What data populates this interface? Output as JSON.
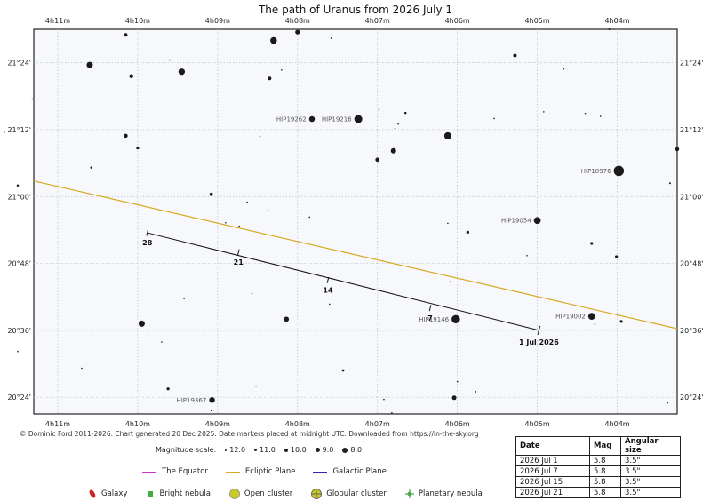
{
  "title": "The path of Uranus from 2026 July 1",
  "chart_data": {
    "type": "star-chart",
    "ra_ticks": [
      "4h11m",
      "4h10m",
      "4h09m",
      "4h08m",
      "4h07m",
      "4h06m",
      "4h05m",
      "4h04m"
    ],
    "dec_ticks": [
      "21°24'",
      "21°12'",
      "21°00'",
      "20°48'",
      "20°36'",
      "20°24'"
    ],
    "ra_range_minutes": [
      3.25,
      11.3
    ],
    "dec_range_arcmin": [
      1221,
      1290
    ],
    "grid": true,
    "ecliptic_line": {
      "color": "#d8a823",
      "dec_at_ra_min": [
        [
          11.3,
          1262.8
        ],
        [
          3.25,
          1236.3
        ]
      ]
    },
    "path": {
      "color": "#111111",
      "start_label": "1 Jul 2026",
      "points": [
        {
          "label": "",
          "ra_min": 4.98,
          "dec": 1236.0
        },
        {
          "label": "7",
          "ra_min": 6.34,
          "dec": 1240.0
        },
        {
          "label": "14",
          "ra_min": 7.62,
          "dec": 1245.0
        },
        {
          "label": "21",
          "ra_min": 8.74,
          "dec": 1250.0
        },
        {
          "label": "28",
          "ra_min": 9.88,
          "dec": 1253.5
        }
      ]
    },
    "named_stars": [
      {
        "name": "HIP19262",
        "ra_min": 7.82,
        "dec": 1273.9,
        "mag": 10.0
      },
      {
        "name": "HIP19216",
        "ra_min": 7.24,
        "dec": 1273.9,
        "mag": 9.0
      },
      {
        "name": "HIP18976",
        "ra_min": 3.98,
        "dec": 1264.6,
        "mag": 8.0
      },
      {
        "name": "HIP19054",
        "ra_min": 5.0,
        "dec": 1255.7,
        "mag": 9.5
      },
      {
        "name": "HIP19002",
        "ra_min": 4.32,
        "dec": 1238.5,
        "mag": 9.5
      },
      {
        "name": "HIP19146",
        "ra_min": 6.02,
        "dec": 1238.0,
        "mag": 8.8
      },
      {
        "name": "HIP19367",
        "ra_min": 9.07,
        "dec": 1223.5,
        "mag": 10.0
      }
    ],
    "field_stars": [
      [
        11.0,
        1288.8,
        12.0
      ],
      [
        10.15,
        1289.0,
        11.0
      ],
      [
        8.0,
        1289.5,
        10.5
      ],
      [
        8.3,
        1288.0,
        9.6
      ],
      [
        7.58,
        1288.4,
        12.0
      ],
      [
        9.6,
        1284.5,
        12.0
      ],
      [
        10.6,
        1283.6,
        9.8
      ],
      [
        9.45,
        1282.4,
        9.7
      ],
      [
        8.2,
        1282.7,
        12.0
      ],
      [
        8.35,
        1281.2,
        11.0
      ],
      [
        5.28,
        1285.3,
        11.0
      ],
      [
        4.67,
        1282.9,
        12.0
      ],
      [
        10.08,
        1281.6,
        10.8
      ],
      [
        11.32,
        1277.5,
        12.0
      ],
      [
        6.98,
        1275.6,
        12.0
      ],
      [
        4.92,
        1275.2,
        12.0
      ],
      [
        4.4,
        1274.9,
        12.0
      ],
      [
        4.21,
        1274.4,
        12.0
      ],
      [
        6.65,
        1275.0,
        11.6
      ],
      [
        5.54,
        1274.0,
        12.0
      ],
      [
        6.74,
        1273.0,
        12.0
      ],
      [
        6.78,
        1272.2,
        12.0
      ],
      [
        11.67,
        1271.5,
        12.0
      ],
      [
        10.15,
        1270.9,
        10.8
      ],
      [
        8.47,
        1270.8,
        12.0
      ],
      [
        6.12,
        1270.9,
        9.4
      ],
      [
        10.0,
        1268.7,
        11.3
      ],
      [
        6.8,
        1268.2,
        10.2
      ],
      [
        7.0,
        1266.6,
        10.7
      ],
      [
        10.58,
        1265.2,
        11.6
      ],
      [
        11.5,
        1262.0,
        11.6
      ],
      [
        9.08,
        1260.4,
        11.1
      ],
      [
        8.63,
        1259.0,
        12.0
      ],
      [
        8.37,
        1257.5,
        12.0
      ],
      [
        7.85,
        1256.3,
        12.0
      ],
      [
        8.9,
        1255.3,
        12.0
      ],
      [
        8.73,
        1254.7,
        12.0
      ],
      [
        6.12,
        1255.2,
        12.0
      ],
      [
        5.87,
        1253.6,
        11.3
      ],
      [
        4.32,
        1251.6,
        11.3
      ],
      [
        5.13,
        1249.4,
        12.0
      ],
      [
        4.01,
        1249.2,
        11.3
      ],
      [
        11.8,
        1255.3,
        10.8
      ],
      [
        9.42,
        1241.7,
        12.0
      ],
      [
        8.57,
        1242.6,
        12.0
      ],
      [
        7.6,
        1240.7,
        12.0
      ],
      [
        6.09,
        1244.7,
        12.0
      ],
      [
        8.14,
        1238.0,
        10.3
      ],
      [
        9.95,
        1237.2,
        9.8
      ],
      [
        9.7,
        1233.9,
        12.0
      ],
      [
        11.5,
        1232.2,
        12.0
      ],
      [
        10.7,
        1229.2,
        12.0
      ],
      [
        9.62,
        1225.5,
        11.3
      ],
      [
        8.52,
        1226.0,
        12.0
      ],
      [
        7.43,
        1228.8,
        11.5
      ],
      [
        6.04,
        1223.9,
        10.6
      ],
      [
        6.0,
        1226.8,
        12.0
      ],
      [
        5.77,
        1225.0,
        12.0
      ],
      [
        4.28,
        1237.1,
        12.0
      ],
      [
        3.95,
        1237.6,
        11.3
      ],
      [
        3.37,
        1223.0,
        12.0
      ],
      [
        6.92,
        1223.6,
        12.0
      ],
      [
        6.82,
        1221.2,
        12.0
      ],
      [
        9.08,
        1221.6,
        12.0
      ],
      [
        3.34,
        1262.4,
        11.8
      ],
      [
        3.25,
        1268.5,
        10.8
      ],
      [
        4.1,
        1290.0,
        11.8
      ]
    ]
  },
  "credit": "© Dominic Ford 2011-2026. Chart generated 20 Dec 2025. Date markers placed at midnight UTC. Downloaded from https://in-the-sky.org",
  "magnitude_scale": {
    "label": "Magnitude scale:",
    "items": [
      "12.0",
      "11.0",
      "10.0",
      "9.0",
      "8.0"
    ]
  },
  "legend": {
    "lines": [
      {
        "label": "The Equator",
        "color": "#cc33cc"
      },
      {
        "label": "Ecliptic Plane",
        "color": "#d8a823"
      },
      {
        "label": "Galactic Plane",
        "color": "#2b2bb0"
      }
    ],
    "objects": [
      {
        "label": "Galaxy",
        "color": "#cc2222"
      },
      {
        "label": "Bright nebula",
        "color": "#44aa44"
      },
      {
        "label": "Open cluster",
        "color": "#c9c92a"
      },
      {
        "label": "Globular cluster",
        "color": "#c9c92a"
      },
      {
        "label": "Planetary nebula",
        "color": "#44aa44"
      }
    ]
  },
  "ephemeris": {
    "headers": [
      "Date",
      "Mag",
      "Angular size"
    ],
    "rows": [
      [
        "2026 Jul 1",
        "5.8",
        "3.5\""
      ],
      [
        "2026 Jul 7",
        "5.8",
        "3.5\""
      ],
      [
        "2026 Jul 15",
        "5.8",
        "3.5\""
      ],
      [
        "2026 Jul 21",
        "5.8",
        "3.5\""
      ]
    ]
  }
}
